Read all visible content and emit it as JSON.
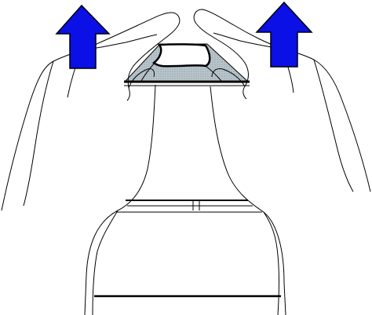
{
  "illustration": {
    "subject": "two-hands-lifting-cap-from-bottle",
    "arrow_color": "#0a10e6",
    "outline_color": "#000000",
    "shade_color": "#a8b6bd",
    "background": "#ffffff",
    "icons": [
      "up-arrow-icon",
      "up-arrow-icon"
    ]
  }
}
